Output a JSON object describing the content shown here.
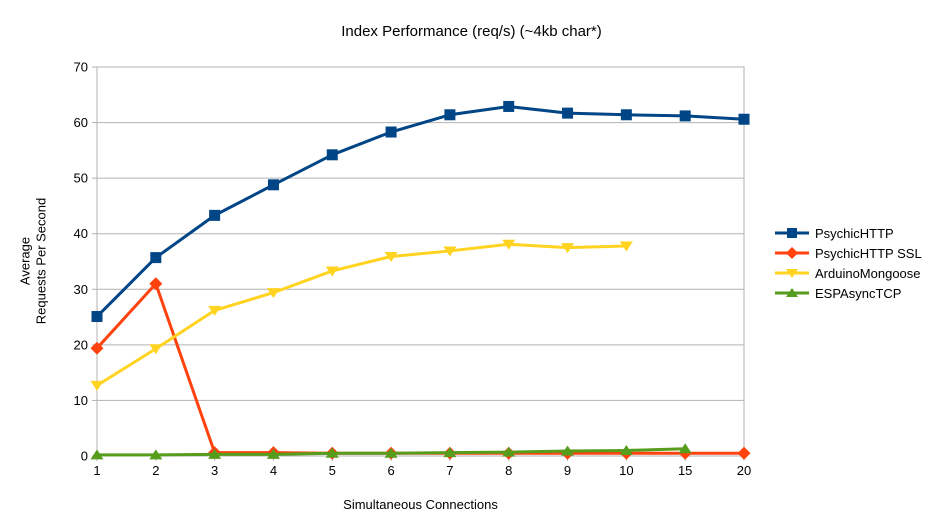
{
  "chart_data": {
    "type": "line",
    "title": "Index Performance (req/s) (~4kb char*)",
    "xlabel": "Simultaneous Connections",
    "ylabel": "Average\nRequests Per Second",
    "ylim": [
      0,
      70
    ],
    "y_ticks": [
      0,
      10,
      20,
      30,
      40,
      50,
      60,
      70
    ],
    "categories": [
      "1",
      "2",
      "3",
      "4",
      "5",
      "6",
      "7",
      "8",
      "9",
      "10",
      "15",
      "20"
    ],
    "grid": "horizontal",
    "legend_position": "right",
    "series": [
      {
        "name": "PsychicHTTP",
        "color": "#004586",
        "marker": "square",
        "values": [
          25.1,
          35.7,
          43.3,
          48.8,
          54.2,
          58.3,
          61.4,
          62.9,
          61.7,
          61.4,
          61.2,
          60.6
        ]
      },
      {
        "name": "PsychicHTTP SSL",
        "color": "#ff420e",
        "marker": "diamond",
        "values": [
          19.4,
          31.0,
          0.6,
          0.6,
          0.5,
          0.5,
          0.5,
          0.5,
          0.5,
          0.5,
          0.5,
          0.5
        ]
      },
      {
        "name": "ArduinoMongoose",
        "color": "#ffd320",
        "marker": "triangle-down",
        "values": [
          12.7,
          19.3,
          26.2,
          29.4,
          33.3,
          35.9,
          36.9,
          38.1,
          37.5,
          37.8
        ]
      },
      {
        "name": "ESPAsyncTCP",
        "color": "#579d1c",
        "marker": "triangle-up",
        "values": [
          0.2,
          0.2,
          0.3,
          0.3,
          0.5,
          0.5,
          0.6,
          0.7,
          0.9,
          1.0,
          1.3
        ]
      }
    ]
  },
  "colors": {
    "gridline": "#b3b3b3",
    "axis": "#b3b3b3",
    "text": "#000000",
    "background": "#ffffff"
  }
}
